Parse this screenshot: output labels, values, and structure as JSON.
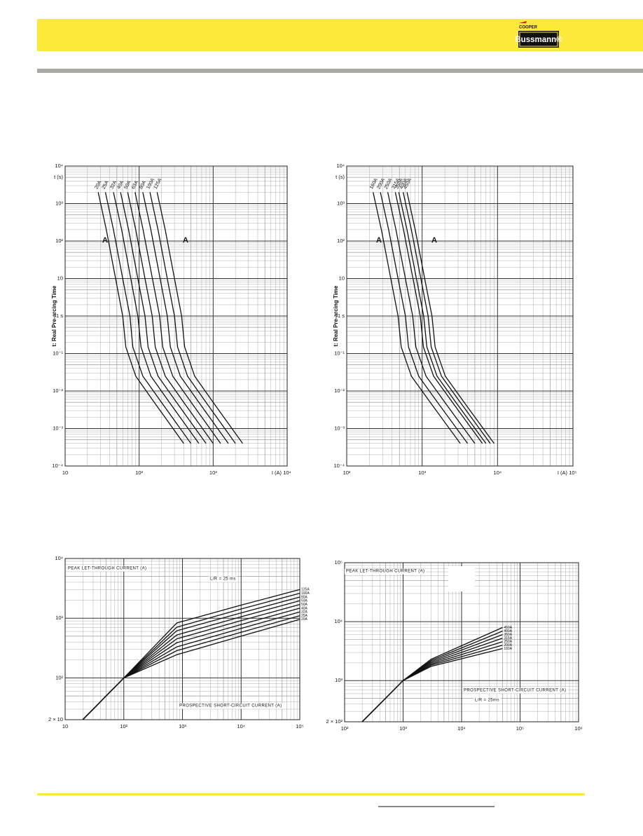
{
  "header": {
    "brand_top": "COOPER",
    "brand": "Bussmann®"
  },
  "chart_data": [
    {
      "type": "line",
      "log_x": true,
      "log_y": true,
      "grid": true,
      "minor_grid": true,
      "label_position": "start",
      "ylabel": "t: Real Pre-arcing Time",
      "y_unit": "t (s)",
      "xlabel": "I (A)",
      "xlim": [
        10,
        10000
      ],
      "xticks": [
        10,
        {
          "value": 100,
          "label": "10²"
        },
        {
          "value": 1000,
          "label": "10³"
        },
        {
          "value": 10000,
          "label": "10⁴"
        }
      ],
      "ylim": [
        0.0001,
        10000
      ],
      "yticks": [
        {
          "value": 10000,
          "label": "10⁴"
        },
        {
          "value": 1000,
          "label": "10³"
        },
        {
          "value": 100,
          "label": "10²"
        },
        10,
        {
          "value": 1,
          "label": "1 s"
        },
        {
          "value": 0.1,
          "label": "10⁻¹"
        },
        {
          "value": 0.01,
          "label": "10⁻²"
        },
        {
          "value": 0.001,
          "label": "10⁻³"
        },
        {
          "value": 0.0001,
          "label": "10⁻⁴"
        }
      ],
      "annotations": [
        "A",
        "A"
      ],
      "series": [
        {
          "name": "20A",
          "color": "#111111",
          "x": [
            28,
            36,
            48,
            60,
            66,
            90,
            160,
            400
          ],
          "values": [
            2000,
            200,
            10,
            1,
            0.15,
            0.025,
            0.005,
            0.0004
          ]
        },
        {
          "name": "25A",
          "color": "#111111",
          "x": [
            35,
            45,
            60,
            75,
            82,
            112,
            200,
            500
          ],
          "values": [
            2000,
            200,
            10,
            1,
            0.15,
            0.025,
            0.005,
            0.0004
          ]
        },
        {
          "name": "32A",
          "color": "#111111",
          "x": [
            45,
            58,
            77,
            96,
            106,
            144,
            256,
            640
          ],
          "values": [
            2000,
            200,
            10,
            1,
            0.15,
            0.025,
            0.005,
            0.0004
          ]
        },
        {
          "name": "40A",
          "color": "#111111",
          "x": [
            56,
            72,
            96,
            120,
            132,
            180,
            320,
            800
          ],
          "values": [
            2000,
            200,
            10,
            1,
            0.15,
            0.025,
            0.005,
            0.0004
          ]
        },
        {
          "name": "50A",
          "color": "#111111",
          "x": [
            70,
            90,
            120,
            150,
            165,
            225,
            400,
            1000
          ],
          "values": [
            2000,
            200,
            10,
            1,
            0.15,
            0.025,
            0.005,
            0.0004
          ]
        },
        {
          "name": "63A",
          "color": "#111111",
          "x": [
            88,
            113,
            151,
            189,
            208,
            284,
            504,
            1260
          ],
          "values": [
            2000,
            200,
            10,
            1,
            0.15,
            0.025,
            0.005,
            0.0004
          ]
        },
        {
          "name": "80A",
          "color": "#111111",
          "x": [
            112,
            144,
            192,
            240,
            264,
            360,
            640,
            1600
          ],
          "values": [
            2000,
            200,
            10,
            1,
            0.15,
            0.025,
            0.005,
            0.0004
          ]
        },
        {
          "name": "100A",
          "color": "#111111",
          "x": [
            140,
            180,
            240,
            300,
            330,
            450,
            800,
            2000
          ],
          "values": [
            2000,
            200,
            10,
            1,
            0.15,
            0.025,
            0.005,
            0.0004
          ]
        },
        {
          "name": "125A",
          "color": "#111111",
          "x": [
            175,
            225,
            300,
            375,
            412,
            562,
            1000,
            2500
          ],
          "values": [
            2000,
            200,
            10,
            1,
            0.15,
            0.025,
            0.005,
            0.0004
          ]
        }
      ]
    },
    {
      "type": "line",
      "log_x": true,
      "log_y": true,
      "grid": true,
      "minor_grid": true,
      "label_position": "start",
      "ylabel": "t: Real Pre-arcing Time",
      "y_unit": "t (s)",
      "xlabel": "I (A)",
      "xlim": [
        100,
        100000
      ],
      "xticks": [
        {
          "value": 100,
          "label": "10²"
        },
        {
          "value": 1000,
          "label": "10³"
        },
        {
          "value": 10000,
          "label": "10⁴"
        },
        {
          "value": 100000,
          "label": "10⁵"
        }
      ],
      "ylim": [
        0.0001,
        10000
      ],
      "yticks": [
        {
          "value": 10000,
          "label": "10⁴"
        },
        {
          "value": 1000,
          "label": "10³"
        },
        {
          "value": 100,
          "label": "10²"
        },
        10,
        {
          "value": 1,
          "label": "1 s"
        },
        {
          "value": 0.1,
          "label": "10⁻¹"
        },
        {
          "value": 0.01,
          "label": "10⁻²"
        },
        {
          "value": 0.001,
          "label": "10⁻³"
        },
        {
          "value": 0.0001,
          "label": "10⁻⁴"
        }
      ],
      "annotations": [
        "A",
        "A"
      ],
      "series": [
        {
          "name": "160A",
          "color": "#111111",
          "x": [
            224,
            288,
            384,
            480,
            528,
            720,
            1280,
            3200
          ],
          "values": [
            2000,
            200,
            10,
            1,
            0.15,
            0.025,
            0.005,
            0.0004
          ]
        },
        {
          "name": "200A",
          "color": "#111111",
          "x": [
            280,
            360,
            480,
            600,
            660,
            900,
            1600,
            4000
          ],
          "values": [
            2000,
            200,
            10,
            1,
            0.15,
            0.025,
            0.005,
            0.0004
          ]
        },
        {
          "name": "250A",
          "color": "#111111",
          "x": [
            350,
            450,
            600,
            750,
            825,
            1125,
            2000,
            5000
          ],
          "values": [
            2000,
            200,
            10,
            1,
            0.15,
            0.025,
            0.005,
            0.0004
          ]
        },
        {
          "name": "315A",
          "color": "#111111",
          "x": [
            441,
            567,
            756,
            945,
            1040,
            1418,
            2520,
            6300
          ],
          "values": [
            2000,
            200,
            10,
            1,
            0.15,
            0.025,
            0.005,
            0.0004
          ]
        },
        {
          "name": "350A",
          "color": "#111111",
          "x": [
            490,
            630,
            840,
            1050,
            1155,
            1575,
            2800,
            7000
          ],
          "values": [
            2000,
            200,
            10,
            1,
            0.15,
            0.025,
            0.005,
            0.0004
          ]
        },
        {
          "name": "400A",
          "color": "#111111",
          "x": [
            560,
            720,
            960,
            1200,
            1320,
            1800,
            3200,
            8000
          ],
          "values": [
            2000,
            200,
            10,
            1,
            0.15,
            0.025,
            0.005,
            0.0004
          ]
        },
        {
          "name": "450A",
          "color": "#111111",
          "x": [
            630,
            810,
            1080,
            1350,
            1485,
            2025,
            3600,
            9000
          ],
          "values": [
            2000,
            200,
            10,
            1,
            0.15,
            0.025,
            0.005,
            0.0004
          ]
        }
      ]
    },
    {
      "type": "line",
      "log_x": true,
      "log_y": true,
      "grid": true,
      "minor_grid": true,
      "label_position": "end",
      "xlim": [
        10,
        100000
      ],
      "xticks": [
        10,
        {
          "value": 100,
          "label": "10²"
        },
        {
          "value": 1000,
          "label": "10³"
        },
        {
          "value": 10000,
          "label": "10⁴"
        },
        {
          "value": 100000,
          "label": "10⁵"
        }
      ],
      "ylim": [
        20,
        10000
      ],
      "yticks": [
        {
          "value": 10000,
          "label": "10⁴"
        },
        {
          "value": 1000,
          "label": "10³"
        },
        {
          "value": 100,
          "label": "10²"
        },
        {
          "value": 20,
          "label": "2 × 10"
        }
      ],
      "annotations": [
        "PEAK LET-THROUGH CURRENT (A)",
        "PROSPECTIVE SHORT-CIRCUIT CURRENT (A)",
        "L/R = 25 ms"
      ],
      "series": [
        {
          "name": "20A",
          "color": "#111111",
          "x": [
            20,
            100,
            800,
            10000,
            100000
          ],
          "values": [
            20,
            100,
            245,
            501,
            955
          ]
        },
        {
          "name": "25A",
          "color": "#111111",
          "x": [
            20,
            100,
            800,
            10000,
            100000
          ],
          "values": [
            20,
            100,
            286,
            582,
            1103
          ]
        },
        {
          "name": "32A",
          "color": "#111111",
          "x": [
            20,
            100,
            800,
            10000,
            100000
          ],
          "values": [
            20,
            100,
            331,
            676,
            1274
          ]
        },
        {
          "name": "40A",
          "color": "#111111",
          "x": [
            20,
            100,
            800,
            10000,
            100000
          ],
          "values": [
            20,
            100,
            389,
            785,
            1471
          ]
        },
        {
          "name": "50A",
          "color": "#111111",
          "x": [
            20,
            100,
            800,
            10000,
            100000
          ],
          "values": [
            20,
            100,
            452,
            912,
            1698
          ]
        },
        {
          "name": "63A",
          "color": "#111111",
          "x": [
            20,
            100,
            800,
            10000,
            100000
          ],
          "values": [
            20,
            100,
            525,
            1059,
            1961
          ]
        },
        {
          "name": "80A",
          "color": "#111111",
          "x": [
            20,
            100,
            800,
            10000,
            100000
          ],
          "values": [
            20,
            100,
            617,
            1230,
            2265
          ]
        },
        {
          "name": "100A",
          "color": "#111111",
          "x": [
            20,
            100,
            800,
            10000,
            100000
          ],
          "values": [
            20,
            100,
            708,
            1429,
            2616
          ]
        },
        {
          "name": "125A",
          "color": "#111111",
          "x": [
            20,
            100,
            800,
            10000,
            100000
          ],
          "values": [
            20,
            100,
            832,
            1660,
            3020
          ]
        }
      ]
    },
    {
      "type": "line",
      "log_x": true,
      "log_y": true,
      "grid": true,
      "minor_grid": true,
      "label_position": "end",
      "xlim": [
        100,
        1000000
      ],
      "xticks": [
        {
          "value": 100,
          "label": "10²"
        },
        {
          "value": 1000,
          "label": "10³"
        },
        {
          "value": 10000,
          "label": "10⁴"
        },
        {
          "value": 100000,
          "label": "10⁵"
        },
        {
          "value": 1000000,
          "label": "10⁶"
        }
      ],
      "ylim": [
        200,
        100000
      ],
      "yticks": [
        {
          "value": 100000,
          "label": "10⁵"
        },
        {
          "value": 10000,
          "label": "10⁴"
        },
        {
          "value": 1000,
          "label": "10³"
        },
        {
          "value": 200,
          "label": "2 × 10²"
        }
      ],
      "annotations": [
        "PEAK LET-THROUGH CURRENT (A)",
        "PROSPECTIVE SHORT-CIRCUIT CURRENT (A)",
        "L/R = 25ms"
      ],
      "series": [
        {
          "name": "160A",
          "color": "#111111",
          "x": [
            200,
            1000,
            3000,
            50000
          ],
          "values": [
            200,
            1000,
            1740,
            3500
          ]
        },
        {
          "name": "200A",
          "color": "#111111",
          "x": [
            200,
            1000,
            3000,
            50000
          ],
          "values": [
            200,
            1000,
            1820,
            3981
          ]
        },
        {
          "name": "250A",
          "color": "#111111",
          "x": [
            200,
            1000,
            3000,
            50000
          ],
          "values": [
            200,
            1000,
            1905,
            4571
          ]
        },
        {
          "name": "315A",
          "color": "#111111",
          "x": [
            200,
            1000,
            3000,
            50000
          ],
          "values": [
            200,
            1000,
            1995,
            5248
          ]
        },
        {
          "name": "350A",
          "color": "#111111",
          "x": [
            200,
            1000,
            3000,
            50000
          ],
          "values": [
            200,
            1000,
            2089,
            6026
          ]
        },
        {
          "name": "400A",
          "color": "#111111",
          "x": [
            200,
            1000,
            3000,
            50000
          ],
          "values": [
            200,
            1000,
            2188,
            6918
          ]
        },
        {
          "name": "450A",
          "color": "#111111",
          "x": [
            200,
            1000,
            3000,
            50000
          ],
          "values": [
            200,
            1000,
            2291,
            7943
          ]
        }
      ]
    }
  ]
}
